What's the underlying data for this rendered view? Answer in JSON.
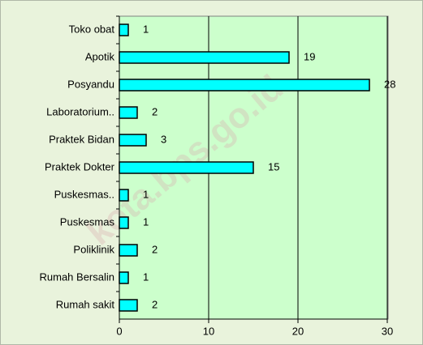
{
  "chart_data": {
    "type": "bar",
    "orientation": "horizontal",
    "categories": [
      "Toko obat",
      "Apotik",
      "Posyandu",
      "Laboratorium..",
      "Praktek Bidan",
      "Praktek Dokter",
      "Puskesmas..",
      "Puskesmas",
      "Poliklinik",
      "Rumah Bersalin",
      "Rumah sakit"
    ],
    "values": [
      1,
      19,
      28,
      2,
      3,
      15,
      1,
      1,
      2,
      1,
      2
    ],
    "color": "#00ffff",
    "xlim": [
      0,
      30
    ],
    "xticks": [
      0,
      10,
      20,
      30
    ],
    "grid": true,
    "watermark": "kota.bps.go.id"
  }
}
